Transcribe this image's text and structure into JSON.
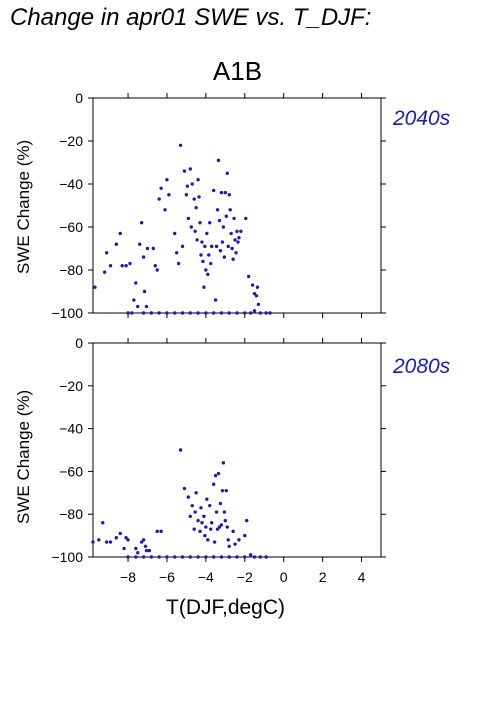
{
  "title": "Change in apr01 SWE vs. T_DJF:",
  "scenario": "A1B",
  "x_label": "T(DJF,degC)",
  "marker_color": "#1c1cb4",
  "chart_data": [
    {
      "type": "scatter",
      "panel_label": "2040s",
      "ylabel": "SWE Change (%)",
      "xlim": [
        -9.8,
        5
      ],
      "ylim": [
        -100,
        0
      ],
      "x_ticks": [
        -8,
        -6,
        -4,
        -2,
        0,
        2,
        4
      ],
      "y_ticks": [
        0,
        -20,
        -40,
        -60,
        -80,
        -100
      ],
      "points": [
        [
          -9.7,
          -88
        ],
        [
          -9.2,
          -81
        ],
        [
          -9.1,
          -72
        ],
        [
          -8.9,
          -78
        ],
        [
          -8.6,
          -68
        ],
        [
          -8.4,
          -63
        ],
        [
          -8.3,
          -78
        ],
        [
          -8.1,
          -78
        ],
        [
          -7.9,
          -77
        ],
        [
          -7.7,
          -94
        ],
        [
          -7.6,
          -86
        ],
        [
          -7.5,
          -97
        ],
        [
          -7.4,
          -68
        ],
        [
          -7.3,
          -58
        ],
        [
          -7.2,
          -74
        ],
        [
          -7.15,
          -90
        ],
        [
          -7.05,
          -97
        ],
        [
          -7.0,
          -70
        ],
        [
          -6.7,
          -70
        ],
        [
          -6.6,
          -78
        ],
        [
          -6.5,
          -80
        ],
        [
          -6.4,
          -47
        ],
        [
          -6.3,
          -42
        ],
        [
          -6.1,
          -52
        ],
        [
          -6.0,
          -38
        ],
        [
          -5.9,
          -45
        ],
        [
          -5.6,
          -63
        ],
        [
          -5.5,
          -72
        ],
        [
          -5.4,
          -77
        ],
        [
          -5.3,
          -22
        ],
        [
          -5.2,
          -69
        ],
        [
          -5.1,
          -34
        ],
        [
          -5.0,
          -45
        ],
        [
          -4.95,
          -41
        ],
        [
          -4.9,
          -56
        ],
        [
          -4.8,
          -33
        ],
        [
          -4.75,
          -60
        ],
        [
          -4.7,
          -40
        ],
        [
          -4.6,
          -47
        ],
        [
          -4.55,
          -62
        ],
        [
          -4.5,
          -51
        ],
        [
          -4.45,
          -66
        ],
        [
          -4.4,
          -38
        ],
        [
          -4.35,
          -46
        ],
        [
          -4.3,
          -58
        ],
        [
          -4.25,
          -73
        ],
        [
          -4.2,
          -67
        ],
        [
          -4.15,
          -76
        ],
        [
          -4.1,
          -88
        ],
        [
          -4.05,
          -69
        ],
        [
          -4.0,
          -80
        ],
        [
          -3.95,
          -63
        ],
        [
          -3.9,
          -82
        ],
        [
          -3.85,
          -73
        ],
        [
          -3.8,
          -58
        ],
        [
          -3.75,
          -77
        ],
        [
          -3.7,
          -69
        ],
        [
          -3.6,
          -43
        ],
        [
          -3.5,
          -94
        ],
        [
          -3.45,
          -69
        ],
        [
          -3.4,
          -52
        ],
        [
          -3.35,
          -29
        ],
        [
          -3.3,
          -57
        ],
        [
          -3.25,
          -71
        ],
        [
          -3.2,
          -44
        ],
        [
          -3.15,
          -67
        ],
        [
          -3.1,
          -60
        ],
        [
          -3.05,
          -74
        ],
        [
          -3.0,
          -44
        ],
        [
          -2.95,
          -55
        ],
        [
          -2.9,
          -35
        ],
        [
          -2.85,
          -69
        ],
        [
          -2.8,
          -45
        ],
        [
          -2.75,
          -52
        ],
        [
          -2.7,
          -63
        ],
        [
          -2.65,
          -70
        ],
        [
          -2.6,
          -75
        ],
        [
          -2.55,
          -56
        ],
        [
          -2.5,
          -66
        ],
        [
          -2.45,
          -72
        ],
        [
          -2.4,
          -62
        ],
        [
          -2.35,
          -67
        ],
        [
          -2.3,
          -65
        ],
        [
          -2.2,
          -62
        ],
        [
          -1.95,
          -56
        ],
        [
          -1.8,
          -83
        ],
        [
          -1.6,
          -87
        ],
        [
          -1.5,
          -91
        ],
        [
          -1.4,
          -92
        ],
        [
          -1.35,
          -88
        ],
        [
          -1.3,
          -96
        ],
        [
          -1.5,
          -99
        ],
        [
          -1.2,
          -100
        ],
        [
          -0.9,
          -100
        ],
        [
          -0.7,
          -100
        ],
        [
          -8.0,
          -100
        ],
        [
          -7.8,
          -100
        ],
        [
          -7.2,
          -100
        ],
        [
          -6.8,
          -100
        ],
        [
          -6.4,
          -100
        ],
        [
          -6.0,
          -100
        ],
        [
          -5.6,
          -100
        ],
        [
          -5.2,
          -100
        ],
        [
          -4.8,
          -100
        ],
        [
          -4.4,
          -100
        ],
        [
          -4.0,
          -100
        ],
        [
          -3.6,
          -100
        ],
        [
          -3.2,
          -100
        ],
        [
          -2.8,
          -100
        ],
        [
          -2.4,
          -100
        ],
        [
          -2.0,
          -100
        ],
        [
          -1.7,
          -100
        ]
      ]
    },
    {
      "type": "scatter",
      "panel_label": "2080s",
      "ylabel": "SWE Change (%)",
      "xlim": [
        -9.8,
        5
      ],
      "ylim": [
        -100,
        0
      ],
      "x_ticks": [
        -8,
        -6,
        -4,
        -2,
        0,
        2,
        4
      ],
      "y_ticks": [
        0,
        -20,
        -40,
        -60,
        -80,
        -100
      ],
      "points": [
        [
          -9.8,
          -93
        ],
        [
          -9.5,
          -92
        ],
        [
          -9.3,
          -84
        ],
        [
          -9.1,
          -93
        ],
        [
          -8.9,
          -93
        ],
        [
          -8.6,
          -91
        ],
        [
          -8.4,
          -89
        ],
        [
          -8.2,
          -96
        ],
        [
          -8.1,
          -91
        ],
        [
          -8.0,
          -92
        ],
        [
          -7.6,
          -96
        ],
        [
          -7.5,
          -98
        ],
        [
          -7.3,
          -93
        ],
        [
          -7.2,
          -92
        ],
        [
          -7.1,
          -95
        ],
        [
          -7.05,
          -97
        ],
        [
          -6.9,
          -97
        ],
        [
          -6.5,
          -88
        ],
        [
          -6.3,
          -88
        ],
        [
          -5.3,
          -50
        ],
        [
          -5.1,
          -68
        ],
        [
          -4.9,
          -72
        ],
        [
          -4.8,
          -81
        ],
        [
          -4.7,
          -76
        ],
        [
          -4.6,
          -87
        ],
        [
          -4.55,
          -79
        ],
        [
          -4.5,
          -70
        ],
        [
          -4.4,
          -83
        ],
        [
          -4.3,
          -88
        ],
        [
          -4.25,
          -77
        ],
        [
          -4.2,
          -84
        ],
        [
          -4.1,
          -81
        ],
        [
          -4.05,
          -90
        ],
        [
          -4.0,
          -86
        ],
        [
          -3.95,
          -73
        ],
        [
          -3.9,
          -92
        ],
        [
          -3.8,
          -76
        ],
        [
          -3.75,
          -87
        ],
        [
          -3.7,
          -84
        ],
        [
          -3.6,
          -66
        ],
        [
          -3.55,
          -93
        ],
        [
          -3.5,
          -62
        ],
        [
          -3.45,
          -79
        ],
        [
          -3.4,
          -87
        ],
        [
          -3.35,
          -61
        ],
        [
          -3.3,
          -86
        ],
        [
          -3.25,
          -75
        ],
        [
          -3.2,
          -85
        ],
        [
          -3.15,
          -69
        ],
        [
          -3.1,
          -56
        ],
        [
          -3.05,
          -79
        ],
        [
          -3.0,
          -83
        ],
        [
          -2.95,
          -69
        ],
        [
          -2.9,
          -86
        ],
        [
          -2.85,
          -92
        ],
        [
          -2.8,
          -95
        ],
        [
          -2.6,
          -88
        ],
        [
          -2.5,
          -94
        ],
        [
          -2.3,
          -92
        ],
        [
          -2.0,
          -90
        ],
        [
          -1.9,
          -83
        ],
        [
          -1.7,
          -99
        ],
        [
          -1.5,
          -100
        ],
        [
          -1.2,
          -100
        ],
        [
          -0.9,
          -100
        ],
        [
          -8.0,
          -100
        ],
        [
          -7.6,
          -100
        ],
        [
          -7.2,
          -100
        ],
        [
          -6.8,
          -100
        ],
        [
          -6.4,
          -100
        ],
        [
          -6.0,
          -100
        ],
        [
          -5.6,
          -100
        ],
        [
          -5.2,
          -100
        ],
        [
          -4.8,
          -100
        ],
        [
          -4.4,
          -100
        ],
        [
          -4.0,
          -100
        ],
        [
          -3.6,
          -100
        ],
        [
          -3.2,
          -100
        ],
        [
          -2.8,
          -100
        ],
        [
          -2.4,
          -100
        ],
        [
          -2.0,
          -100
        ]
      ]
    }
  ]
}
